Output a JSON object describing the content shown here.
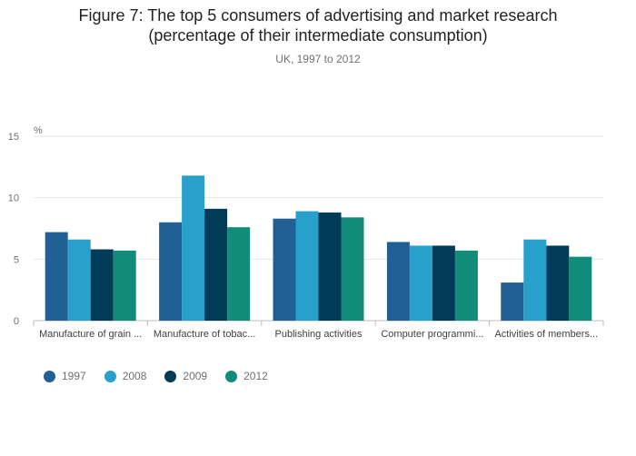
{
  "title_line1": "Figure 7: The top 5 consumers of advertising and market research",
  "title_line2": "(percentage of their intermediate consumption)",
  "subtitle": "UK, 1997 to 2012",
  "chart_data": {
    "type": "bar",
    "title": "Figure 7: The top 5 consumers of advertising and market research (percentage of their intermediate consumption)",
    "subtitle": "UK, 1997 to 2012",
    "ylabel": "%",
    "ylim": [
      0,
      15
    ],
    "yticks": [
      0,
      5,
      10,
      15
    ],
    "grid": true,
    "legend_position": "bottom-left",
    "categories": [
      "Manufacture of grain ...",
      "Manufacture of tobac...",
      "Publishing activities",
      "Computer programmi...",
      "Activities of members..."
    ],
    "series": [
      {
        "name": "1997",
        "color": "#206095",
        "values": [
          7.2,
          8.0,
          8.3,
          6.4,
          3.1
        ]
      },
      {
        "name": "2008",
        "color": "#27a0cc",
        "values": [
          6.6,
          11.8,
          8.9,
          6.1,
          6.6
        ]
      },
      {
        "name": "2009",
        "color": "#003c57",
        "values": [
          5.8,
          9.1,
          8.8,
          6.1,
          6.1
        ]
      },
      {
        "name": "2012",
        "color": "#118c7b",
        "values": [
          5.7,
          7.6,
          8.4,
          5.7,
          5.2
        ]
      }
    ]
  }
}
